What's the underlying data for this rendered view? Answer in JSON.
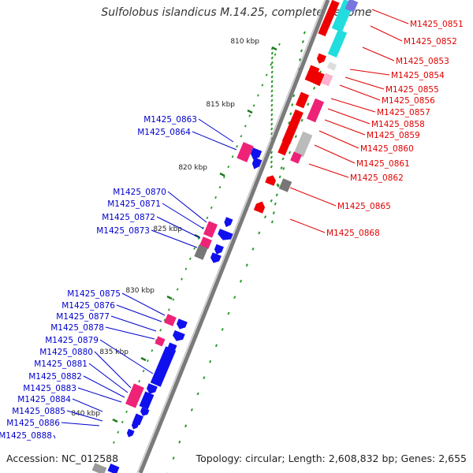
{
  "title": "Sulfolobus islandicus M.14.25, complete genome",
  "footer": {
    "accession": "Accession: NC_012588",
    "topology": "Topology: circular; Length: 2,608,832 bp; Genes: 2,655"
  },
  "colors": {
    "backbone": "#7a7a7a",
    "kbp_tick": "#2e8b2e",
    "plus_label": "#e00000",
    "minus_label": "#0000cc",
    "red": "#ee0000",
    "pink": "#ee2277",
    "blue": "#1010ee",
    "gray": "#777777",
    "cyan": "#22dddd",
    "purple": "#7777dd"
  },
  "kbp_ticks": [
    "810 kbp",
    "815 kbp",
    "820 kbp",
    "825 kbp",
    "830 kbp",
    "835 kbp",
    "840 kbp"
  ],
  "labels_right": [
    "M1425_0851",
    "M1425_0852",
    "M1425_0853",
    "M1425_0854",
    "M1425_0855",
    "M1425_0856",
    "M1425_0857",
    "M1425_0858",
    "M1425_0859",
    "M1425_0860",
    "M1425_0861",
    "M1425_0862",
    "M1425_0865",
    "M1425_0868"
  ],
  "labels_left": [
    "M1425_0863",
    "M1425_0864",
    "M1425_0870",
    "M1425_0871",
    "M1425_0872",
    "M1425_0873",
    "M1425_0875",
    "M1425_0876",
    "M1425_0877",
    "M1425_0878",
    "M1425_0879",
    "M1425_0880",
    "M1425_0881",
    "M1425_0882",
    "M1425_0883",
    "M1425_0884",
    "M1425_0885",
    "M1425_0886",
    "M1425_0888"
  ]
}
